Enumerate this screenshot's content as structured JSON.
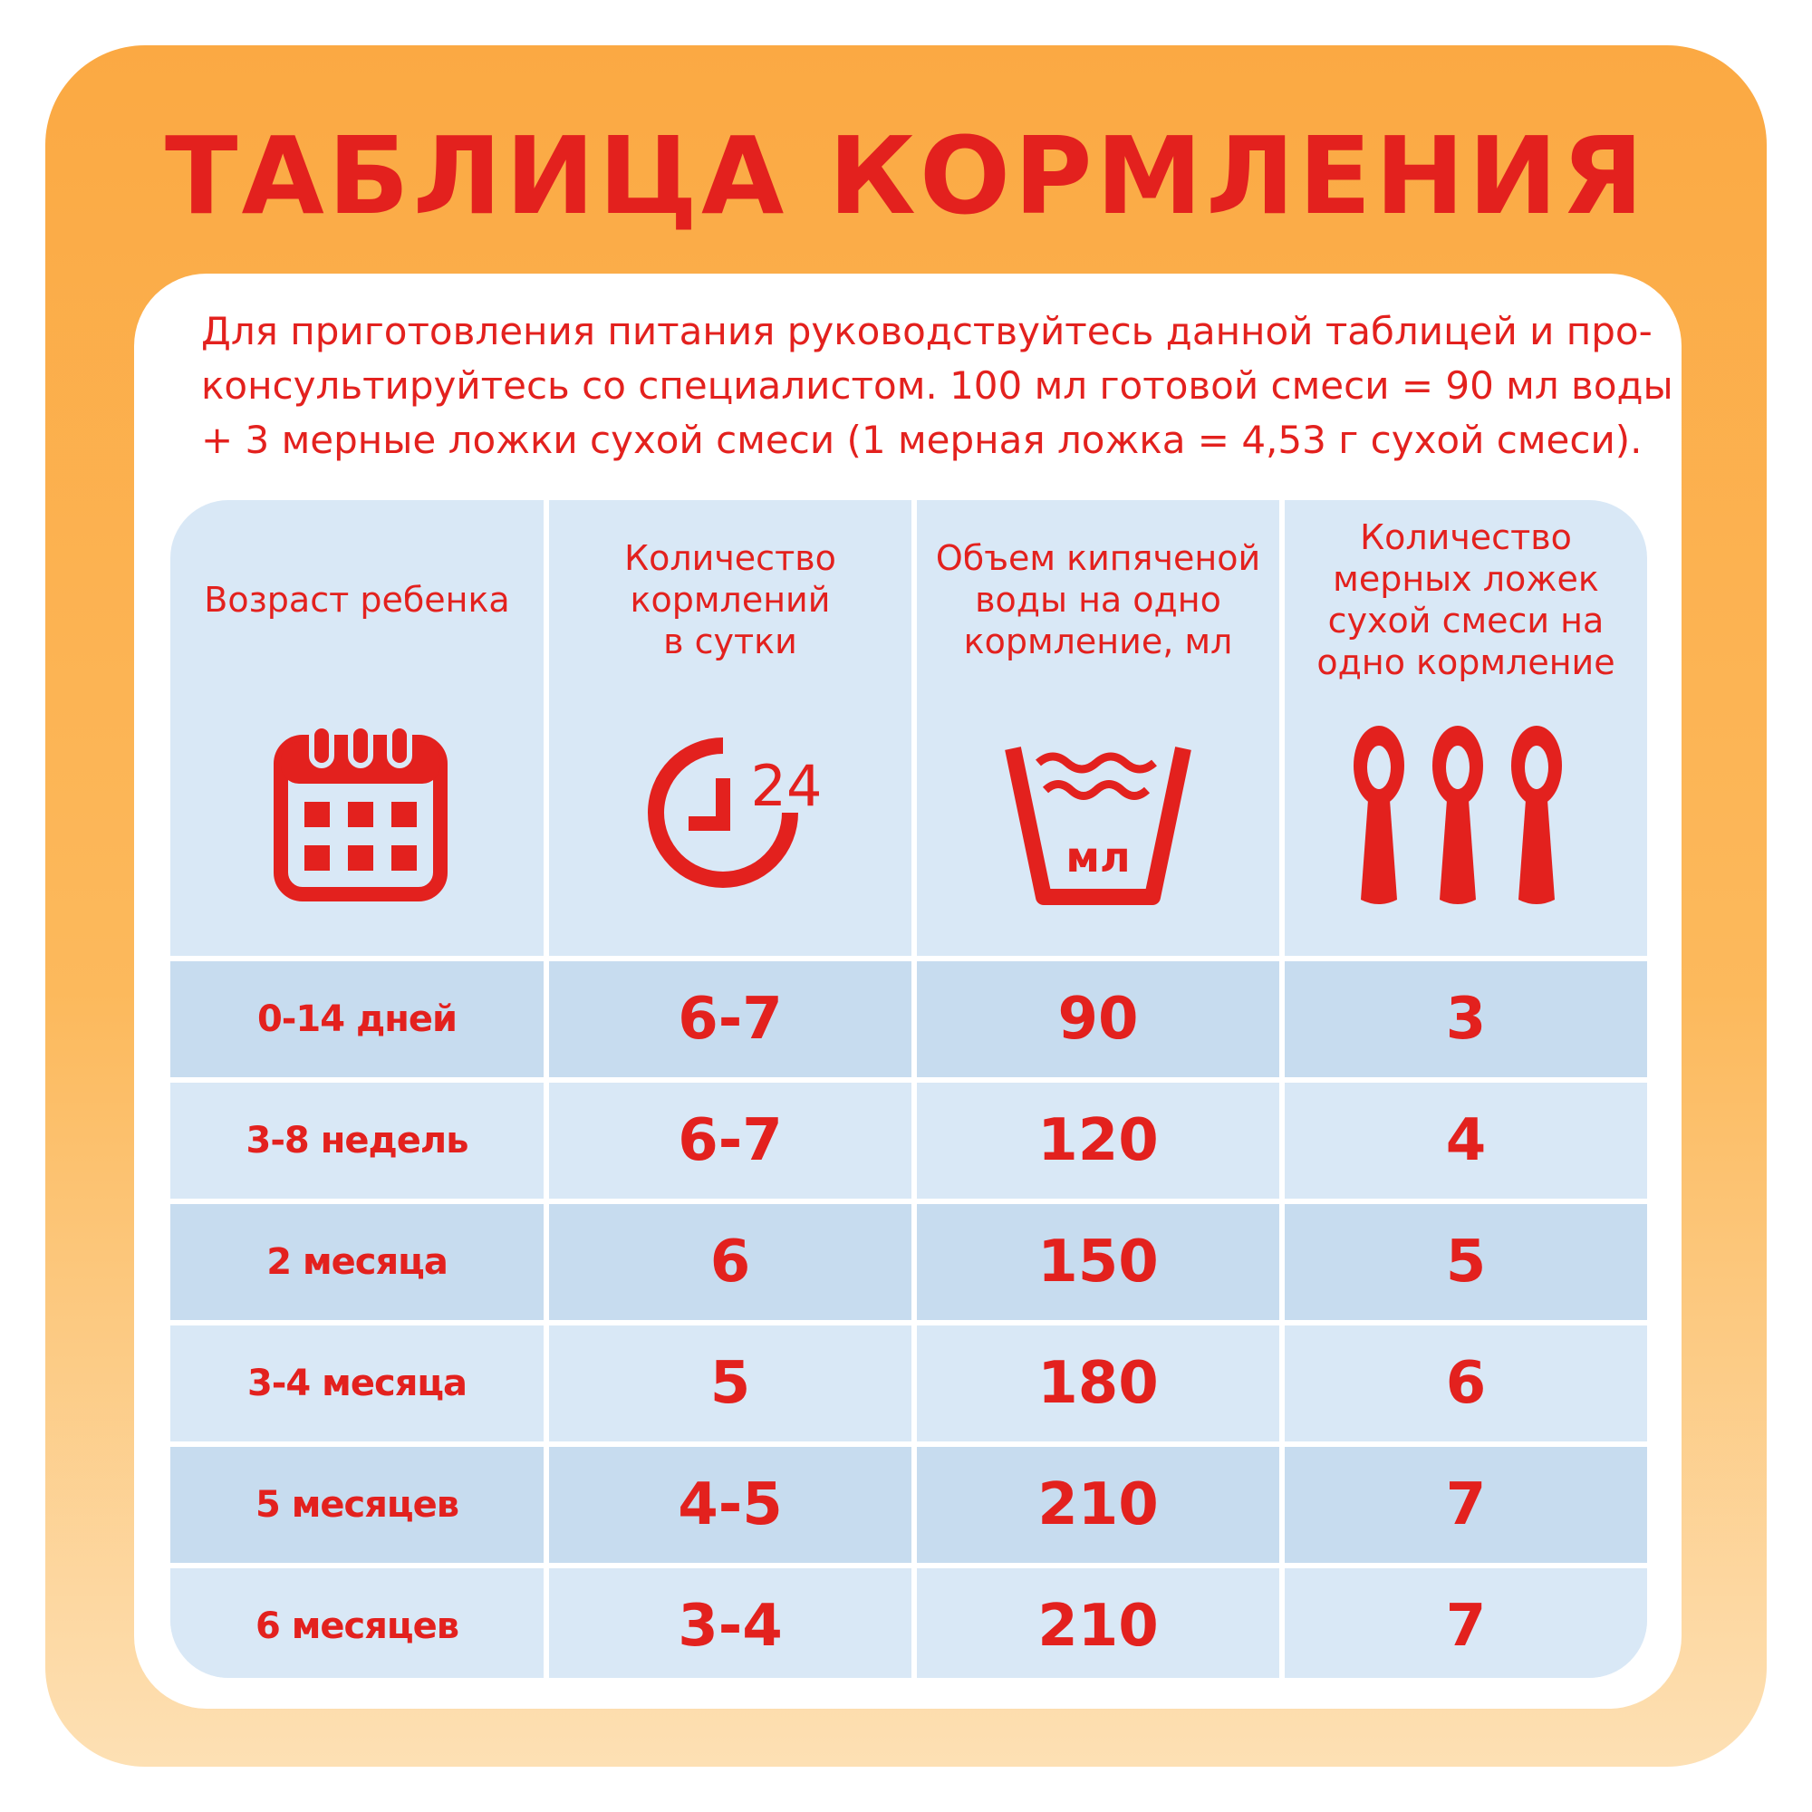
{
  "title": "ТАБЛИЦА КОРМЛЕНИЯ",
  "intro": {
    "line1": "Для приготовления питания руководствуйтесь данной таблицей и про-",
    "line2": "консультируйтесь со специалистом. 100 мл готовой смеси = 90 мл воды",
    "line3": "+ 3 мерные ложки сухой смеси (1 мерная ложка = 4,53 г сухой смеси)."
  },
  "colors": {
    "accent": "#e3211e",
    "frame": "#fba943",
    "row_light": "#d9e8f6",
    "row_dark": "#c7dcef"
  },
  "headers": [
    {
      "lines": [
        "Возраст ребенка"
      ],
      "icon": "calendar-icon"
    },
    {
      "lines": [
        "Количество",
        "кормлений",
        "в сутки"
      ],
      "icon": "clock-24-icon"
    },
    {
      "lines": [
        "Объем кипяченой",
        "воды на одно",
        "кормление, мл"
      ],
      "icon": "water-basin-icon",
      "icon_text": "мл",
      "clock_text": "24"
    },
    {
      "lines": [
        "Количество",
        "мерных ложек",
        "сухой смеси на",
        "одно кормление"
      ],
      "icon": "spoons-icon"
    }
  ],
  "rows": [
    {
      "age": "0-14 дней",
      "feedings": "6-7",
      "water": "90",
      "spoons": "3"
    },
    {
      "age": "3-8 недель",
      "feedings": "6-7",
      "water": "120",
      "spoons": "4"
    },
    {
      "age": "2 месяца",
      "feedings": "6",
      "water": "150",
      "spoons": "5"
    },
    {
      "age": "3-4 месяца",
      "feedings": "5",
      "water": "180",
      "spoons": "6"
    },
    {
      "age": "5 месяцев",
      "feedings": "4-5",
      "water": "210",
      "spoons": "7"
    },
    {
      "age": "6 месяцев",
      "feedings": "3-4",
      "water": "210",
      "spoons": "7"
    }
  ]
}
